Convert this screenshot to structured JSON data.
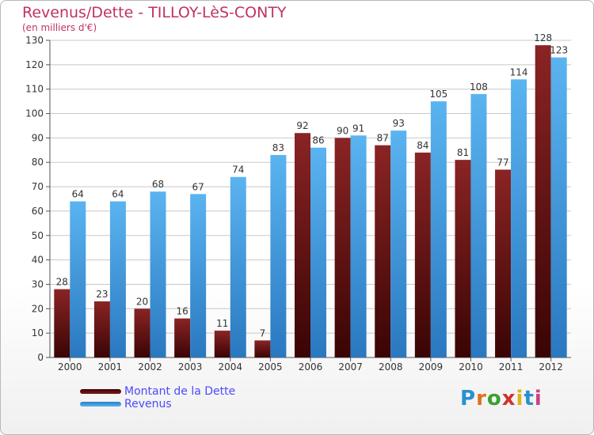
{
  "title": "Revenus/Dette - TILLOY-LèS-CONTY",
  "subtitle": "(en milliers d'€)",
  "brand": "Proxiti",
  "colors": {
    "dette": "#7b1a1a",
    "revenus": "#4aa3e6",
    "title": "#c0335f",
    "legend_text": "#4a4aff",
    "grid": "#c8c8c8"
  },
  "chart_data": {
    "type": "bar",
    "title": "Revenus/Dette - TILLOY-LèS-CONTY",
    "ylabel": "(en milliers d'€)",
    "categories": [
      "2000",
      "2001",
      "2002",
      "2003",
      "2004",
      "2005",
      "2006",
      "2007",
      "2008",
      "2009",
      "2010",
      "2011",
      "2012"
    ],
    "series": [
      {
        "name": "Montant de la Dette",
        "values": [
          28,
          23,
          20,
          16,
          11,
          7,
          92,
          90,
          87,
          84,
          81,
          77,
          128
        ]
      },
      {
        "name": "Revenus",
        "values": [
          64,
          64,
          68,
          67,
          74,
          83,
          86,
          91,
          93,
          105,
          108,
          114,
          123
        ]
      }
    ],
    "ylim": [
      0,
      130
    ],
    "yticks": [
      0,
      10,
      20,
      30,
      40,
      50,
      60,
      70,
      80,
      90,
      100,
      110,
      120,
      130
    ],
    "grid": true,
    "legend_position": "bottom-left"
  }
}
